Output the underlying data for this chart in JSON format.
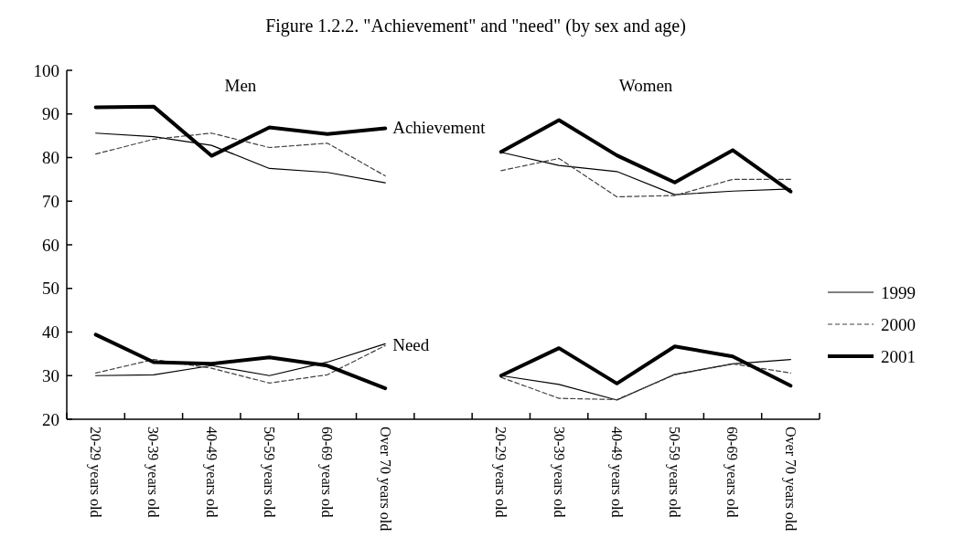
{
  "chart_data": {
    "type": "line",
    "title": "Figure 1.2.2.  \"Achievement\"  and \"need\"  (by sex and age)",
    "categories": [
      "20-29 years old",
      "30-39 years old",
      "40-49 years old",
      "50-59 years old",
      "60-69 years old",
      "Over 70 years old",
      null,
      "20-29 years old",
      "30-39 years old",
      "40-49 years old",
      "50-59 years old",
      "60-69 years old",
      "Over 70 years old"
    ],
    "series": [
      {
        "name": "1999",
        "color": "#000000",
        "line_style": "solid",
        "values": [
          85.6,
          84.8,
          82.8,
          77.5,
          76.6,
          74.2,
          null,
          81.2,
          78.2,
          76.8,
          71.5,
          72.3,
          72.8
        ]
      },
      {
        "name": "2000",
        "color": "#404040",
        "line_style": "dashed",
        "values": [
          80.8,
          84.2,
          85.6,
          82.3,
          83.3,
          75.8,
          null,
          77,
          79.8,
          71,
          71.3,
          75,
          75
        ]
      },
      {
        "name": "2001",
        "color": "#000000",
        "line_style": "solid",
        "values": [
          91.5,
          91.7,
          80.4,
          86.9,
          85.4,
          86.7,
          null,
          81.3,
          88.6,
          80.5,
          74.3,
          81.7,
          72.2
        ]
      },
      {
        "color": "#000000",
        "line_style": "solid",
        "values": [
          30,
          30.2,
          32.3,
          30,
          33.1,
          37.3,
          null,
          30,
          28,
          24.4,
          30.3,
          32.7,
          33.7
        ]
      },
      {
        "color": "#404040",
        "line_style": "dashed",
        "values": [
          30.6,
          33.7,
          31.7,
          28.3,
          30.2,
          36.9,
          null,
          29.6,
          24.8,
          24.5,
          30.2,
          32.7,
          30.6
        ]
      },
      {
        "color": "#000000",
        "line_style": "solid",
        "values": [
          39.4,
          33.1,
          32.7,
          34.2,
          32.3,
          27.1,
          null,
          30,
          36.3,
          28.2,
          36.7,
          34.4,
          27.7
        ]
      }
    ],
    "annotations": [
      "Men",
      "Women",
      {
        "text": "Achievement",
        "x": "Over 70 years old",
        "y": 87
      },
      {
        "text": "Need",
        "x": "Over 70 years old",
        "y": 37
      }
    ],
    "ylim": [
      20,
      100
    ],
    "yticks": [
      20,
      30,
      40,
      50,
      60,
      70,
      80,
      90,
      100
    ],
    "grid": false,
    "legend": "right"
  }
}
